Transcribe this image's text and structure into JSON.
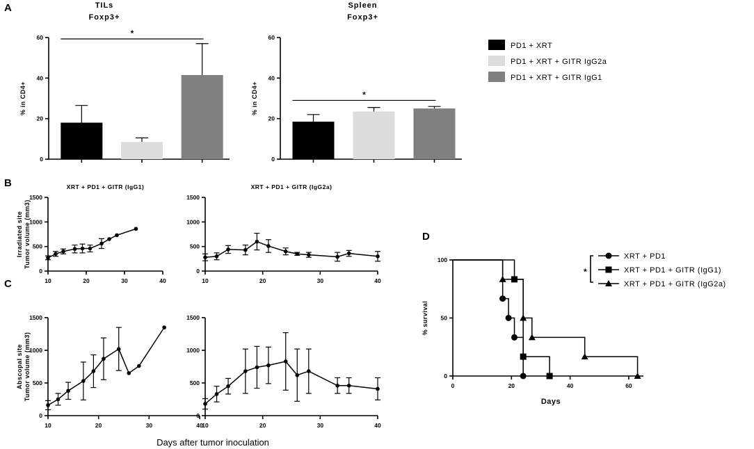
{
  "panels": {
    "A": "A",
    "B": "B",
    "C": "C",
    "D": "D"
  },
  "x_common_label": "Days after tumor inoculation",
  "legend": {
    "items": [
      {
        "label": "PD1 + XRT",
        "color": "#000000"
      },
      {
        "label": "PD1 + XRT + GITR IgG2a",
        "color": "#dcdcdc"
      },
      {
        "label": "PD1 + XRT + GITR IgG1",
        "color": "#808080"
      }
    ]
  },
  "chart_data": [
    {
      "id": "A-tils",
      "type": "bar",
      "title": [
        "TILs",
        "Foxp3+"
      ],
      "ylabel": "% in CD4+",
      "ylim": [
        0,
        60
      ],
      "yticks": [
        0,
        20,
        40,
        60
      ],
      "categories": [
        "PD1 + XRT",
        "PD1 + XRT + GITR IgG2a",
        "PD1 + XRT + GITR IgG1"
      ],
      "values": [
        18,
        8.5,
        41.5
      ],
      "errors": [
        8.5,
        2,
        15.5
      ],
      "colors": [
        "#000000",
        "#dcdcdc",
        "#808080"
      ],
      "significance": {
        "from": 0,
        "to": 2,
        "y": 60,
        "label": "*"
      }
    },
    {
      "id": "A-spleen",
      "type": "bar",
      "title": [
        "Spleen",
        "Foxp3+"
      ],
      "ylabel": "% in CD4+",
      "ylim": [
        0,
        60
      ],
      "yticks": [
        0,
        20,
        40,
        60
      ],
      "categories": [
        "PD1 + XRT",
        "PD1 + XRT + GITR IgG2a",
        "PD1 + XRT + GITR IgG1"
      ],
      "values": [
        18.5,
        23.5,
        25
      ],
      "errors": [
        3.5,
        2,
        1
      ],
      "colors": [
        "#000000",
        "#dcdcdc",
        "#808080"
      ],
      "significance": {
        "from": 0,
        "to": 2,
        "y": 29,
        "label": "*"
      }
    },
    {
      "id": "B-igg1",
      "type": "line",
      "title": "XRT + PD1 + GITR (IgG1)",
      "ylabel": [
        "Irradiated site",
        "Tumor volume (mm3)"
      ],
      "xlim": [
        10,
        40
      ],
      "xticks": [
        10,
        20,
        30,
        40
      ],
      "ylim": [
        0,
        1500
      ],
      "yticks": [
        0,
        500,
        1000,
        1500
      ],
      "x": [
        10,
        12,
        14,
        17,
        19,
        21,
        24,
        26,
        28,
        33
      ],
      "y": [
        270,
        350,
        400,
        450,
        460,
        460,
        560,
        650,
        730,
        860
      ],
      "err": [
        40,
        50,
        50,
        80,
        90,
        70,
        100,
        0,
        0,
        0
      ]
    },
    {
      "id": "B-igg2a",
      "type": "line",
      "title": "XRT + PD1 + GITR (IgG2a)",
      "ylabel": "",
      "xlim": [
        10,
        40
      ],
      "xticks": [
        10,
        20,
        30,
        40
      ],
      "ylim": [
        0,
        1500
      ],
      "yticks": [
        0,
        500,
        1000,
        1500
      ],
      "x": [
        10,
        12,
        14,
        17,
        19,
        21,
        24,
        26,
        28,
        33,
        35,
        40
      ],
      "y": [
        280,
        300,
        440,
        430,
        600,
        510,
        400,
        350,
        330,
        290,
        360,
        300
      ],
      "err": [
        70,
        70,
        80,
        100,
        170,
        130,
        70,
        30,
        50,
        90,
        60,
        100
      ]
    },
    {
      "id": "C-igg1",
      "type": "line",
      "title": "",
      "ylabel": [
        "Abscopal site",
        "Tumor volume (mm3)"
      ],
      "xlim": [
        10,
        40
      ],
      "xticks": [
        10,
        20,
        30,
        40
      ],
      "ylim": [
        0,
        1500
      ],
      "yticks": [
        0,
        500,
        1000,
        1500
      ],
      "x": [
        10,
        12,
        14,
        17,
        19,
        21,
        24,
        26,
        28,
        33
      ],
      "y": [
        160,
        250,
        380,
        530,
        680,
        870,
        1020,
        650,
        760,
        1350
      ],
      "err": [
        70,
        90,
        130,
        290,
        250,
        320,
        330,
        0,
        0,
        0
      ]
    },
    {
      "id": "C-igg2a",
      "type": "line",
      "title": "",
      "ylabel": "",
      "xlim": [
        10,
        40
      ],
      "xticks": [
        10,
        20,
        30,
        40
      ],
      "ylim": [
        0,
        1500
      ],
      "yticks": [
        0,
        500,
        1000,
        1500
      ],
      "x": [
        10,
        12,
        14,
        17,
        19,
        21,
        24,
        26,
        28,
        33,
        35,
        40
      ],
      "y": [
        180,
        330,
        450,
        680,
        740,
        770,
        830,
        620,
        680,
        460,
        460,
        410
      ],
      "err": [
        80,
        120,
        120,
        340,
        320,
        280,
        440,
        400,
        340,
        120,
        120,
        170
      ]
    },
    {
      "id": "D-survival",
      "type": "line",
      "title": "",
      "xlabel": "Days",
      "ylabel": "% survival",
      "xlim": [
        0,
        65
      ],
      "xticks": [
        0,
        20,
        40,
        60
      ],
      "ylim": [
        0,
        100
      ],
      "yticks": [
        0,
        50,
        100
      ],
      "series": [
        {
          "name": "XRT + PD1",
          "marker": "circle",
          "steps": [
            [
              0,
              100
            ],
            [
              17,
              100
            ],
            [
              17,
              66.7
            ],
            [
              19,
              66.7
            ],
            [
              19,
              50
            ],
            [
              21,
              50
            ],
            [
              21,
              33.3
            ],
            [
              24,
              33.3
            ],
            [
              24,
              0
            ],
            [
              24.5,
              0
            ]
          ],
          "points": [
            [
              17,
              66.7
            ],
            [
              19,
              50
            ],
            [
              21,
              33.3
            ],
            [
              24,
              0
            ]
          ]
        },
        {
          "name": "XRT + PD1 + GITR (IgG1)",
          "marker": "square",
          "steps": [
            [
              0,
              100
            ],
            [
              21,
              100
            ],
            [
              21,
              83.3
            ],
            [
              24,
              83.3
            ],
            [
              24,
              16.7
            ],
            [
              33,
              16.7
            ],
            [
              33,
              0
            ]
          ],
          "points": [
            [
              21,
              83.3
            ],
            [
              24,
              16.7
            ],
            [
              33,
              0
            ]
          ]
        },
        {
          "name": "XRT + PD1 + GITR (IgG2a)",
          "marker": "triangle",
          "steps": [
            [
              0,
              100
            ],
            [
              17,
              100
            ],
            [
              17,
              83.3
            ],
            [
              24,
              83.3
            ],
            [
              24,
              50
            ],
            [
              27,
              50
            ],
            [
              27,
              33.3
            ],
            [
              45,
              33.3
            ],
            [
              45,
              16.7
            ],
            [
              63,
              16.7
            ],
            [
              63,
              0
            ]
          ],
          "points": [
            [
              17,
              83.3
            ],
            [
              24,
              50
            ],
            [
              27,
              33.3
            ],
            [
              45,
              16.7
            ],
            [
              63,
              0
            ]
          ]
        }
      ],
      "significance_label": "*"
    }
  ]
}
